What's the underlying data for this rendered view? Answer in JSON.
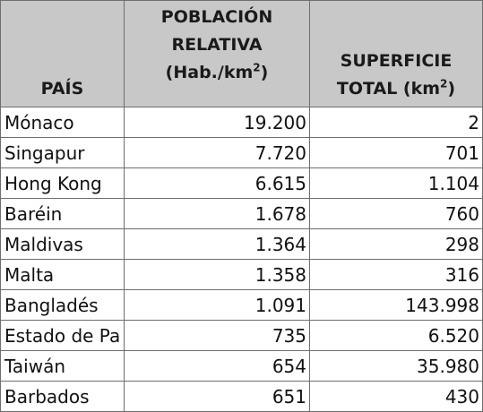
{
  "table": {
    "headers": {
      "country": "PAÍS",
      "density_line1": "POBLACIÓN",
      "density_line2": "RELATIVA",
      "density_line3_pre": "(Hab./km",
      "density_line3_sup": "2",
      "density_line3_post": ")",
      "area_line1": "SUPERFICIE",
      "area_line2_pre": "TOTAL (km",
      "area_line2_sup": "2",
      "area_line2_post": ")"
    },
    "rows": [
      {
        "country": "Mónaco",
        "density": "19.200",
        "area": "2"
      },
      {
        "country": "Singapur",
        "density": "7.720",
        "area": "701"
      },
      {
        "country": "Hong Kong",
        "density": "6.615",
        "area": "1.104"
      },
      {
        "country": "Baréin",
        "density": "1.678",
        "area": "760"
      },
      {
        "country": "Maldivas",
        "density": "1.364",
        "area": "298"
      },
      {
        "country": "Malta",
        "density": "1.358",
        "area": "316"
      },
      {
        "country": "Bangladés",
        "density": "1.091",
        "area": "143.998"
      },
      {
        "country": "Estado de Pa",
        "density": "735",
        "area": "6.520"
      },
      {
        "country": "Taiwán",
        "density": "654",
        "area": "35.980"
      },
      {
        "country": "Barbados",
        "density": "651",
        "area": "430"
      }
    ]
  },
  "colors": {
    "header_background": "#c8c8c8",
    "grid_lines": "#6e6e6e",
    "text": "#111111"
  }
}
